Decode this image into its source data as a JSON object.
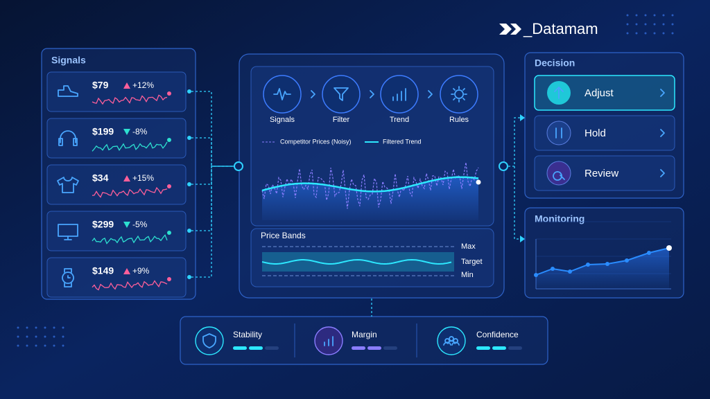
{
  "brand": "_Datamam",
  "signals": {
    "title": "Signals",
    "items": [
      {
        "price": "$79",
        "change": "+12%"
      },
      {
        "price": "$199",
        "change": "-8%"
      },
      {
        "price": "$34",
        "change": "+15%"
      },
      {
        "price": "$299",
        "change": "-5%"
      },
      {
        "price": "$149",
        "change": "+9%"
      }
    ]
  },
  "pipeline": {
    "steps": [
      "Signals",
      "Filter",
      "Trend",
      "Rules"
    ],
    "legend": [
      "Competitor Prices (Noisy)",
      "Filtered Trend"
    ],
    "price_bands": {
      "title": "Price Bands",
      "labels": [
        "Max",
        "Target",
        "Min"
      ]
    }
  },
  "decision": {
    "title": "Decision",
    "actions": [
      "Adjust",
      "Hold",
      "Review"
    ]
  },
  "monitoring": {
    "title": "Monitoring"
  },
  "metrics": [
    "Stability",
    "Margin",
    "Confidence"
  ]
}
